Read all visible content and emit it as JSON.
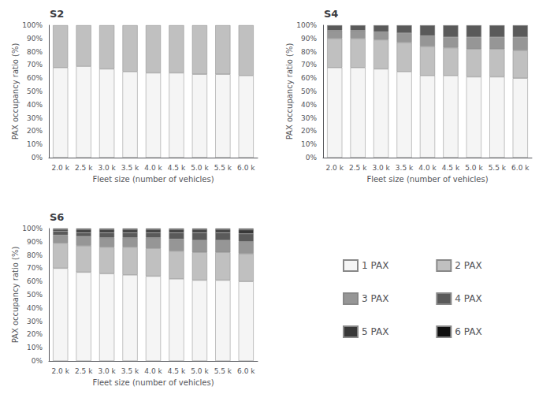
{
  "chart_data": [
    {
      "type": "bar",
      "title": "S2",
      "stacked": true,
      "grid": false,
      "categories": [
        "2.0 k",
        "2.5 k",
        "3.0 k",
        "3.5 k",
        "4.0 k",
        "4.5 k",
        "5.0 k",
        "5.5 k",
        "6.0 k"
      ],
      "series": [
        {
          "name": "1 PAX",
          "color": "#f5f5f5",
          "values": [
            68,
            69,
            67,
            65,
            64,
            64,
            63,
            63,
            62
          ]
        },
        {
          "name": "2 PAX",
          "color": "#c0c0c0",
          "values": [
            32,
            31,
            33,
            35,
            36,
            36,
            37,
            37,
            38
          ]
        }
      ],
      "xlabel": "Fleet size (number of vehicles)",
      "ylabel": "PAX occupancy ratio (%)",
      "ylim": [
        0,
        100
      ],
      "yticks": [
        {
          "value": 0,
          "label": "0%"
        },
        {
          "value": 10,
          "label": "10%"
        },
        {
          "value": 20,
          "label": "20%"
        },
        {
          "value": 30,
          "label": "30%"
        },
        {
          "value": 40,
          "label": "40%"
        },
        {
          "value": 50,
          "label": "50%"
        },
        {
          "value": 60,
          "label": "60%"
        },
        {
          "value": 70,
          "label": "70%"
        },
        {
          "value": 80,
          "label": "80%"
        },
        {
          "value": 90,
          "label": "90%"
        },
        {
          "value": 100,
          "label": "100%"
        }
      ]
    },
    {
      "type": "bar",
      "title": "S4",
      "stacked": true,
      "grid": false,
      "categories": [
        "2.0 k",
        "2.5 k",
        "3.0 k",
        "3.5 k",
        "4.0 k",
        "4.5 k",
        "5.0 k",
        "5.5 k",
        "6.0 k"
      ],
      "series": [
        {
          "name": "1 PAX",
          "color": "#f5f5f5",
          "values": [
            68,
            68,
            67,
            65,
            62,
            62,
            61,
            61,
            60
          ]
        },
        {
          "name": "2 PAX",
          "color": "#c0c0c0",
          "values": [
            22,
            22,
            22,
            22,
            22,
            21,
            21,
            21,
            21
          ]
        },
        {
          "name": "3 PAX",
          "color": "#969696",
          "values": [
            6,
            6,
            6,
            7,
            8,
            8,
            9,
            9,
            10
          ]
        },
        {
          "name": "4 PAX",
          "color": "#5a5a5a",
          "values": [
            4,
            4,
            5,
            6,
            8,
            9,
            9,
            9,
            9
          ]
        }
      ],
      "xlabel": "Fleet size (number of vehicles)",
      "ylabel": "PAX occupancy ratio (%)",
      "ylim": [
        0,
        100
      ],
      "yticks": [
        {
          "value": 0,
          "label": "0%"
        },
        {
          "value": 10,
          "label": "10%"
        },
        {
          "value": 20,
          "label": "20%"
        },
        {
          "value": 30,
          "label": "30%"
        },
        {
          "value": 40,
          "label": "40%"
        },
        {
          "value": 50,
          "label": "50%"
        },
        {
          "value": 60,
          "label": "60%"
        },
        {
          "value": 70,
          "label": "70%"
        },
        {
          "value": 80,
          "label": "80%"
        },
        {
          "value": 90,
          "label": "90%"
        },
        {
          "value": 100,
          "label": "100%"
        }
      ]
    },
    {
      "type": "bar",
      "title": "S6",
      "stacked": true,
      "grid": false,
      "legend": "right",
      "categories": [
        "2.0 k",
        "2.5 k",
        "3.0 k",
        "3.5 k",
        "4.0 k",
        "4.5 k",
        "5.0 k",
        "5.5 k",
        "6.0 k"
      ],
      "series": [
        {
          "name": "1 PAX",
          "color": "#f5f5f5",
          "values": [
            70,
            67,
            66,
            65,
            64,
            62,
            61,
            61,
            60
          ]
        },
        {
          "name": "2 PAX",
          "color": "#c0c0c0",
          "values": [
            19,
            20,
            20,
            21,
            21,
            21,
            21,
            21,
            21
          ]
        },
        {
          "name": "3 PAX",
          "color": "#969696",
          "values": [
            6,
            7,
            7,
            7,
            8,
            9,
            9,
            9,
            9
          ]
        },
        {
          "name": "4 PAX",
          "color": "#5a5a5a",
          "values": [
            3,
            3,
            4,
            4,
            4,
            5,
            6,
            6,
            6
          ]
        },
        {
          "name": "5 PAX",
          "color": "#383838",
          "values": [
            1,
            2,
            2,
            2,
            2,
            2,
            2,
            2,
            3
          ]
        },
        {
          "name": "6 PAX",
          "color": "#101010",
          "values": [
            1,
            1,
            1,
            1,
            1,
            1,
            1,
            1,
            1
          ]
        }
      ],
      "xlabel": "Fleet size (number of vehicles)",
      "ylabel": "PAX occupancy ratio (%)",
      "ylim": [
        0,
        100
      ],
      "yticks": [
        {
          "value": 0,
          "label": "0%"
        },
        {
          "value": 10,
          "label": "10%"
        },
        {
          "value": 20,
          "label": "20%"
        },
        {
          "value": 30,
          "label": "30%"
        },
        {
          "value": 40,
          "label": "40%"
        },
        {
          "value": 50,
          "label": "50%"
        },
        {
          "value": 60,
          "label": "60%"
        },
        {
          "value": 70,
          "label": "70%"
        },
        {
          "value": 80,
          "label": "80%"
        },
        {
          "value": 90,
          "label": "90%"
        },
        {
          "value": 100,
          "label": "100%"
        }
      ]
    }
  ]
}
